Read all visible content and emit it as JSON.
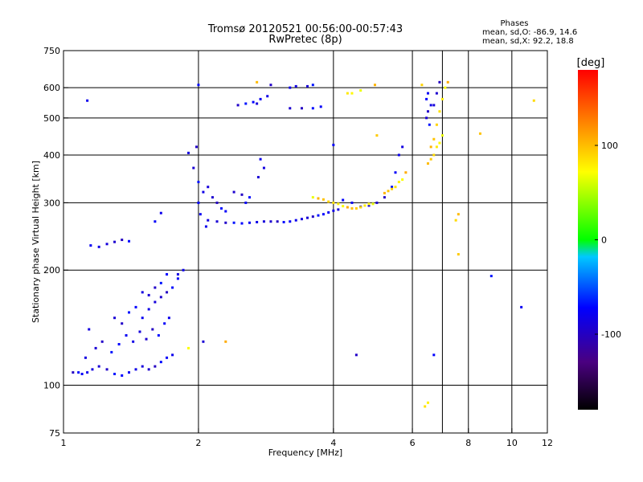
{
  "chart_data": {
    "type": "scatter",
    "title": "Tromsø 20120521 00:56:00-00:57:43",
    "subtitle": "RwPretec (8p)",
    "xlabel": "Frequency [MHz]",
    "ylabel": "Stationary phase Virtual Height [km]",
    "x_scale": "log",
    "y_scale": "log",
    "xlim": [
      1,
      12
    ],
    "ylim": [
      75,
      750
    ],
    "x_ticks": [
      1,
      2,
      4,
      6,
      8,
      10,
      12
    ],
    "x_tick_labels": [
      "1",
      "2",
      "4",
      "6",
      "8",
      "10",
      "12"
    ],
    "x_gridlines": [
      2,
      4,
      6,
      7,
      8,
      10
    ],
    "y_ticks": [
      75,
      100,
      200,
      300,
      400,
      500,
      600,
      750
    ],
    "y_tick_labels": [
      "75",
      "100",
      "200",
      "300",
      "400",
      "500",
      "600",
      "750"
    ],
    "y_gridlines": [
      100,
      200,
      300,
      400,
      500,
      600
    ],
    "grid": true,
    "stats": {
      "heading": "Phases",
      "line1": "mean, sd,O: -86.9, 14.6",
      "line2": "mean, sd,X:  92.2, 18.8"
    },
    "colorbar": {
      "label": "[deg]",
      "range": [
        -180,
        180
      ],
      "ticks": [
        100,
        0,
        -100
      ],
      "tick_labels": [
        "100",
        "0",
        "-100"
      ],
      "colors": [
        "#000000",
        "#4a0080",
        "#0000ff",
        "#00c8ff",
        "#00ff00",
        "#ffff00",
        "#ff8000",
        "#ff0000"
      ]
    },
    "series": [
      {
        "mode": "O",
        "phase_mean": -86.9,
        "phase_sd": 14.6,
        "points": [
          [
            1.05,
            108
          ],
          [
            1.08,
            108
          ],
          [
            1.1,
            107
          ],
          [
            1.13,
            108
          ],
          [
            1.16,
            110
          ],
          [
            1.2,
            112
          ],
          [
            1.25,
            110
          ],
          [
            1.3,
            107
          ],
          [
            1.35,
            106
          ],
          [
            1.4,
            108
          ],
          [
            1.45,
            110
          ],
          [
            1.5,
            112
          ],
          [
            1.55,
            110
          ],
          [
            1.6,
            112
          ],
          [
            1.65,
            115
          ],
          [
            1.7,
            118
          ],
          [
            1.75,
            120
          ],
          [
            1.12,
            118
          ],
          [
            1.18,
            125
          ],
          [
            1.22,
            130
          ],
          [
            1.28,
            122
          ],
          [
            1.33,
            128
          ],
          [
            1.38,
            135
          ],
          [
            1.43,
            130
          ],
          [
            1.48,
            138
          ],
          [
            1.53,
            132
          ],
          [
            1.58,
            140
          ],
          [
            1.63,
            135
          ],
          [
            1.68,
            145
          ],
          [
            1.72,
            150
          ],
          [
            1.14,
            140
          ],
          [
            1.3,
            150
          ],
          [
            1.35,
            145
          ],
          [
            1.4,
            155
          ],
          [
            1.45,
            160
          ],
          [
            1.5,
            150
          ],
          [
            1.55,
            158
          ],
          [
            1.6,
            165
          ],
          [
            1.65,
            170
          ],
          [
            1.7,
            175
          ],
          [
            1.75,
            180
          ],
          [
            1.8,
            190
          ],
          [
            1.85,
            200
          ],
          [
            1.5,
            175
          ],
          [
            1.55,
            172
          ],
          [
            1.6,
            180
          ],
          [
            1.65,
            185
          ],
          [
            1.7,
            195
          ],
          [
            1.15,
            232
          ],
          [
            1.2,
            230
          ],
          [
            1.25,
            234
          ],
          [
            1.3,
            237
          ],
          [
            1.35,
            240
          ],
          [
            1.4,
            238
          ],
          [
            1.6,
            268
          ],
          [
            1.65,
            282
          ],
          [
            1.9,
            405
          ],
          [
            1.95,
            370
          ],
          [
            1.98,
            420
          ],
          [
            2.0,
            340
          ],
          [
            2.0,
            300
          ],
          [
            2.02,
            280
          ],
          [
            2.05,
            320
          ],
          [
            2.1,
            330
          ],
          [
            2.15,
            310
          ],
          [
            2.2,
            300
          ],
          [
            2.25,
            290
          ],
          [
            2.3,
            285
          ],
          [
            2.08,
            260
          ],
          [
            2.1,
            270
          ],
          [
            2.2,
            268
          ],
          [
            2.3,
            266
          ],
          [
            2.4,
            266
          ],
          [
            2.5,
            265
          ],
          [
            2.6,
            266
          ],
          [
            2.7,
            267
          ],
          [
            2.8,
            268
          ],
          [
            2.9,
            268
          ],
          [
            3.0,
            268
          ],
          [
            3.1,
            267
          ],
          [
            3.2,
            268
          ],
          [
            3.3,
            270
          ],
          [
            3.4,
            272
          ],
          [
            3.5,
            274
          ],
          [
            3.6,
            276
          ],
          [
            3.7,
            278
          ],
          [
            3.8,
            280
          ],
          [
            3.9,
            283
          ],
          [
            4.0,
            286
          ],
          [
            4.1,
            288
          ],
          [
            2.4,
            320
          ],
          [
            2.5,
            315
          ],
          [
            2.6,
            310
          ],
          [
            2.55,
            300
          ],
          [
            2.75,
            390
          ],
          [
            2.8,
            370
          ],
          [
            2.72,
            350
          ],
          [
            2.45,
            540
          ],
          [
            2.55,
            545
          ],
          [
            2.65,
            550
          ],
          [
            2.75,
            560
          ],
          [
            2.85,
            570
          ],
          [
            2.7,
            545
          ],
          [
            3.2,
            530
          ],
          [
            3.4,
            530
          ],
          [
            3.6,
            530
          ],
          [
            3.75,
            535
          ],
          [
            3.2,
            600
          ],
          [
            3.3,
            605
          ],
          [
            3.5,
            605
          ],
          [
            2.9,
            610
          ],
          [
            3.6,
            610
          ],
          [
            4.2,
            305
          ],
          [
            4.4,
            300
          ],
          [
            4.6,
            293
          ],
          [
            4.8,
            295
          ],
          [
            5.0,
            300
          ],
          [
            5.2,
            310
          ],
          [
            5.4,
            330
          ],
          [
            5.5,
            360
          ],
          [
            5.6,
            400
          ],
          [
            5.7,
            420
          ],
          [
            6.45,
            500
          ],
          [
            6.5,
            520
          ],
          [
            6.55,
            480
          ],
          [
            6.45,
            560
          ],
          [
            6.5,
            580
          ],
          [
            6.6,
            540
          ],
          [
            6.7,
            540
          ],
          [
            6.8,
            580
          ],
          [
            6.9,
            620
          ],
          [
            2.0,
            610
          ],
          [
            4.0,
            425
          ],
          [
            1.13,
            555
          ],
          [
            1.8,
            195
          ],
          [
            2.05,
            130
          ],
          [
            4.5,
            120
          ],
          [
            9.0,
            193
          ],
          [
            6.7,
            120
          ],
          [
            10.5,
            160
          ]
        ]
      },
      {
        "mode": "X",
        "phase_mean": 92.2,
        "phase_sd": 18.8,
        "points": [
          [
            3.6,
            310
          ],
          [
            3.7,
            308
          ],
          [
            3.8,
            306
          ],
          [
            3.9,
            302
          ],
          [
            4.0,
            300
          ],
          [
            4.1,
            298
          ],
          [
            4.2,
            294
          ],
          [
            4.3,
            292
          ],
          [
            4.4,
            290
          ],
          [
            4.5,
            290
          ],
          [
            4.6,
            292
          ],
          [
            4.7,
            295
          ],
          [
            4.8,
            298
          ],
          [
            4.9,
            298
          ],
          [
            5.2,
            318
          ],
          [
            5.3,
            322
          ],
          [
            5.4,
            326
          ],
          [
            5.5,
            330
          ],
          [
            5.6,
            340
          ],
          [
            5.7,
            345
          ],
          [
            5.8,
            360
          ],
          [
            6.5,
            380
          ],
          [
            6.6,
            390
          ],
          [
            6.7,
            400
          ],
          [
            6.8,
            420
          ],
          [
            6.9,
            430
          ],
          [
            7.0,
            450
          ],
          [
            6.6,
            420
          ],
          [
            6.7,
            440
          ],
          [
            6.8,
            480
          ],
          [
            6.9,
            520
          ],
          [
            7.0,
            560
          ],
          [
            7.1,
            600
          ],
          [
            7.2,
            620
          ],
          [
            7.6,
            280
          ],
          [
            7.6,
            220
          ],
          [
            7.5,
            270
          ],
          [
            4.3,
            580
          ],
          [
            4.4,
            580
          ],
          [
            4.6,
            590
          ],
          [
            4.95,
            610
          ],
          [
            8.5,
            455
          ],
          [
            6.3,
            610
          ],
          [
            6.4,
            88
          ],
          [
            6.5,
            90
          ],
          [
            1.9,
            125
          ],
          [
            2.3,
            130
          ],
          [
            2.7,
            620
          ],
          [
            5.0,
            450
          ],
          [
            11.2,
            555
          ]
        ]
      }
    ]
  }
}
